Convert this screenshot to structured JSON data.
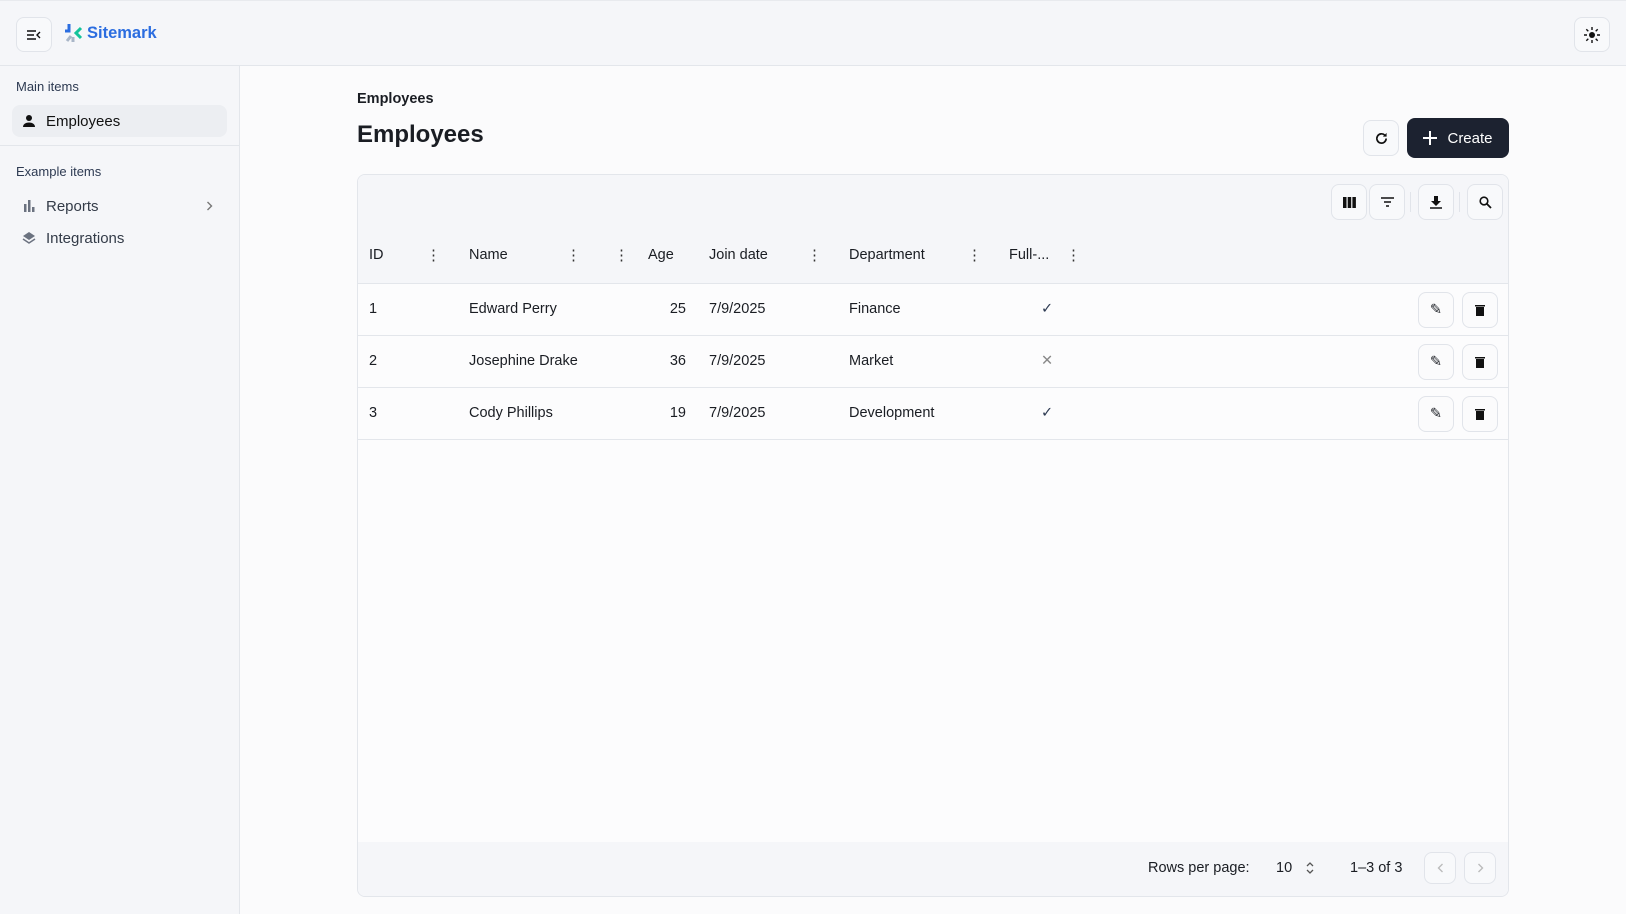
{
  "app": {
    "brand": "Sitemark",
    "brand_colors": {
      "blue": "#2b6de0",
      "green": "#14c39a"
    }
  },
  "sidebar": {
    "sections": [
      {
        "label": "Main items",
        "items": [
          {
            "label": "Employees",
            "icon": "person-icon",
            "active": true
          }
        ]
      },
      {
        "label": "Example items",
        "items": [
          {
            "label": "Reports",
            "icon": "bar-chart-icon",
            "has_chevron": true
          },
          {
            "label": "Integrations",
            "icon": "layers-icon"
          }
        ]
      }
    ]
  },
  "main": {
    "breadcrumb": "Employees",
    "title": "Employees",
    "create_label": "Create",
    "table": {
      "columns": [
        "ID",
        "Name",
        "Age",
        "Join date",
        "Department",
        "Full-..."
      ],
      "rows": [
        {
          "id": "1",
          "name": "Edward Perry",
          "age": "25",
          "join_date": "7/9/2025",
          "department": "Finance",
          "full_time": true
        },
        {
          "id": "2",
          "name": "Josephine Drake",
          "age": "36",
          "join_date": "7/9/2025",
          "department": "Market",
          "full_time": false
        },
        {
          "id": "3",
          "name": "Cody Phillips",
          "age": "19",
          "join_date": "7/9/2025",
          "department": "Development",
          "full_time": true
        }
      ],
      "footer": {
        "rows_per_page_label": "Rows per page:",
        "rows_per_page": "10",
        "range": "1–3 of 3"
      }
    }
  }
}
